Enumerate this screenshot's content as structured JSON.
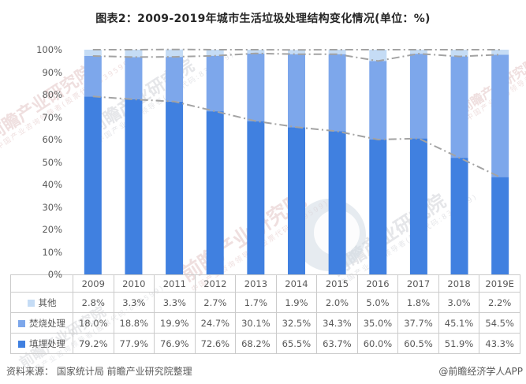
{
  "title": "图表2：2009-2019年城市生活垃圾处理结构变化情况(单位：%)",
  "chart_data": {
    "type": "bar",
    "stacked": true,
    "title": "图表2：2009-2019年城市生活垃圾处理结构变化情况(单位：%)",
    "categories": [
      "2009",
      "2010",
      "2011",
      "2012",
      "2013",
      "2014",
      "2015",
      "2016",
      "2017",
      "2018",
      "2019E"
    ],
    "series": [
      {
        "name": "填埋处理",
        "color": "#4080E0",
        "values": [
          79.2,
          77.9,
          76.9,
          72.6,
          68.2,
          65.5,
          63.7,
          60.0,
          60.5,
          51.9,
          43.3
        ]
      },
      {
        "name": "焚烧处理",
        "color": "#7DA7EB",
        "values": [
          18.0,
          18.8,
          19.9,
          24.7,
          30.1,
          32.5,
          34.3,
          35.0,
          37.7,
          45.1,
          54.5
        ]
      },
      {
        "name": "其他",
        "color": "#C5DCF5",
        "values": [
          2.8,
          3.3,
          3.3,
          2.7,
          1.7,
          1.9,
          2.0,
          5.0,
          1.8,
          3.0,
          2.2
        ]
      }
    ],
    "stack_order": "bottom-to-top",
    "overlay_lines": "cumulative dash-dot gray line per series",
    "line_color": "#A3A3A3",
    "ylim": [
      0,
      100
    ],
    "y_ticks": [
      "100%",
      "90%",
      "80%",
      "70%",
      "60%",
      "50%",
      "40%",
      "30%",
      "20%",
      "10%",
      "0%"
    ],
    "grid": false,
    "legend_position": "table-rows-left",
    "value_format": "one-decimal-percent"
  },
  "footer": {
    "source": "资料来源： 国家统计局 前瞻产业研究院整理",
    "credit": "@前瞻经济学人APP"
  },
  "watermarks": {
    "brand": "前瞻产业研究院",
    "tagline": "中国产业咨询领导者(股票代码:839599)"
  }
}
